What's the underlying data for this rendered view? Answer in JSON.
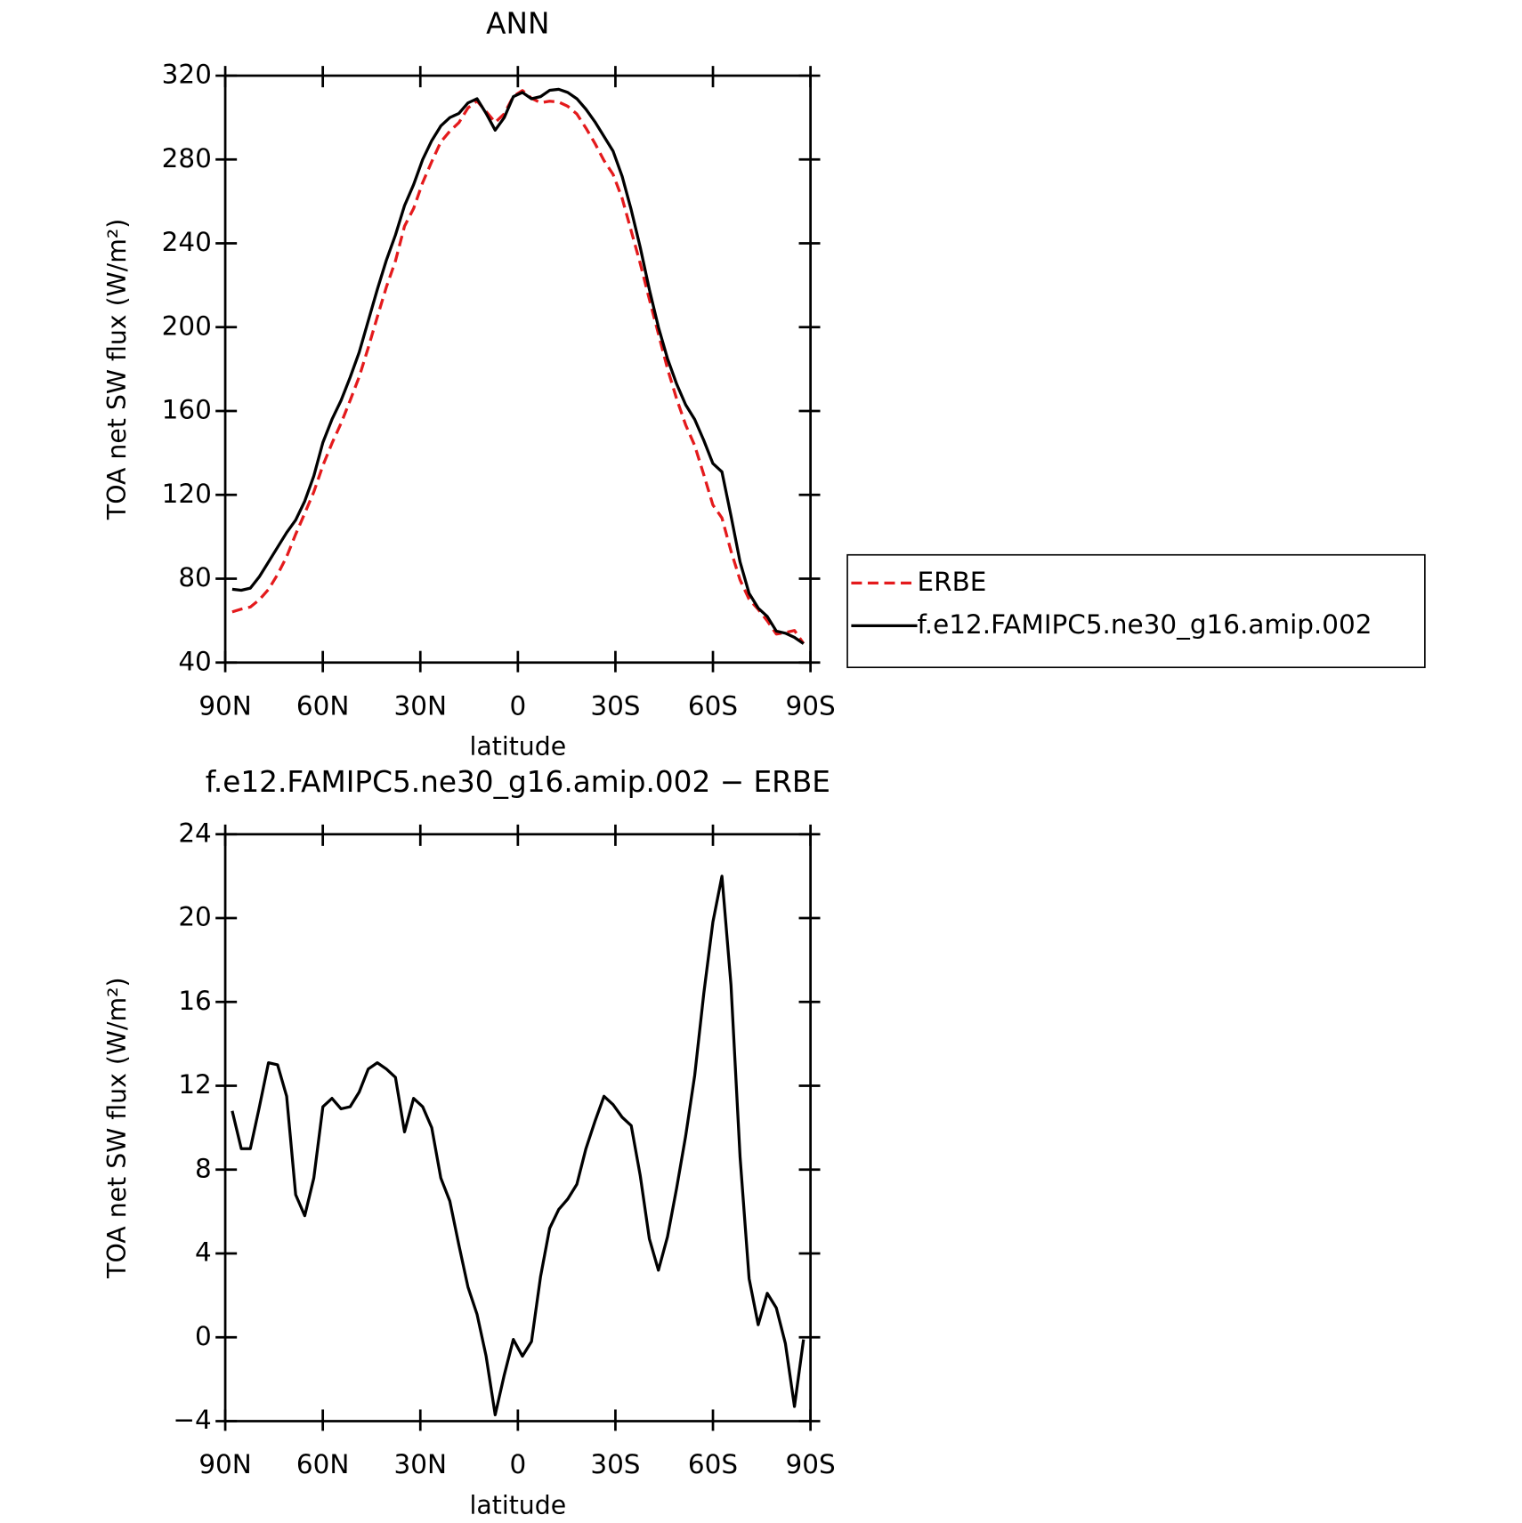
{
  "chart_data": [
    {
      "type": "line",
      "title": "ANN",
      "xlabel": "latitude",
      "ylabel": "TOA net SW flux (W/m²)",
      "x": [
        87.86,
        85.07,
        82.28,
        79.49,
        76.7,
        73.91,
        71.12,
        68.34,
        65.55,
        62.76,
        59.97,
        57.18,
        54.39,
        51.6,
        48.81,
        46.02,
        43.23,
        40.44,
        37.65,
        34.86,
        32.07,
        29.28,
        26.49,
        23.7,
        20.93,
        18.14,
        15.35,
        12.56,
        9.77,
        6.98,
        4.19,
        1.4,
        -1.4,
        -4.19,
        -6.98,
        -9.77,
        -12.56,
        -15.35,
        -18.14,
        -20.93,
        -23.7,
        -26.49,
        -29.28,
        -32.07,
        -34.86,
        -37.65,
        -40.44,
        -43.23,
        -46.02,
        -48.81,
        -51.6,
        -54.39,
        -57.18,
        -59.97,
        -62.76,
        -65.55,
        -68.34,
        -71.12,
        -73.91,
        -76.7,
        -79.49,
        -82.28,
        -85.07,
        -87.86
      ],
      "series": [
        {
          "name": "ERBE",
          "color": "#e41a1c",
          "dash": true,
          "values": [
            64.2,
            65.5,
            66.5,
            70,
            74.9,
            82,
            90.5,
            101.2,
            111.2,
            121.4,
            134,
            144.6,
            154.1,
            165,
            176.3,
            190.2,
            204.9,
            219.2,
            231.6,
            248.2,
            256.6,
            269,
            279,
            288.4,
            293.5,
            297.6,
            304.6,
            307.9,
            302.9,
            297.7,
            301.8,
            310.1,
            312.9,
            309.2,
            307.1,
            307.8,
            307.4,
            305.4,
            301.7,
            295,
            287.7,
            279.5,
            272.9,
            261.5,
            245.9,
            230.3,
            213.3,
            196.8,
            180.2,
            165.9,
            153.4,
            143.5,
            129.6,
            115.2,
            109,
            93.2,
            79.4,
            70.2,
            65.4,
            59.9,
            53.6,
            54.3,
            55.3,
            49.1
          ]
        },
        {
          "name": "f.e12.FAMIPC5.ne30_g16.amip.002",
          "color": "#000000",
          "dash": false,
          "values": [
            75,
            74.5,
            75.5,
            81,
            88,
            95,
            102,
            108,
            117,
            129,
            145,
            156,
            165,
            176,
            188,
            203,
            218,
            232,
            244,
            258,
            268,
            280,
            289,
            296,
            300,
            302,
            307,
            309,
            302,
            294,
            300,
            310,
            312,
            309,
            310,
            313,
            313.5,
            312,
            309,
            304,
            298,
            291,
            284,
            272,
            256,
            238,
            218,
            200,
            185,
            173,
            163,
            156,
            146,
            135,
            131,
            110,
            88,
            73,
            66,
            62,
            55,
            54,
            52,
            49
          ]
        }
      ],
      "xlim": [
        90,
        -90
      ],
      "xticks": [
        {
          "value": 90,
          "label": "90N"
        },
        {
          "value": 60,
          "label": "60N"
        },
        {
          "value": 30,
          "label": "30N"
        },
        0,
        {
          "value": -30,
          "label": "30S"
        },
        {
          "value": -60,
          "label": "60S"
        },
        {
          "value": -90,
          "label": "90S"
        }
      ],
      "ylim": [
        40,
        320
      ],
      "yticks": [
        40,
        80,
        120,
        160,
        200,
        240,
        280,
        320
      ],
      "legend": "right"
    },
    {
      "type": "line",
      "title": "f.e12.FAMIPC5.ne30_g16.amip.002 − ERBE",
      "xlabel": "latitude",
      "ylabel": "TOA net SW flux (W/m²)",
      "x": [
        87.86,
        85.07,
        82.28,
        79.49,
        76.7,
        73.91,
        71.12,
        68.34,
        65.55,
        62.76,
        59.97,
        57.18,
        54.39,
        51.6,
        48.81,
        46.02,
        43.23,
        40.44,
        37.65,
        34.86,
        32.07,
        29.28,
        26.49,
        23.7,
        20.93,
        18.14,
        15.35,
        12.56,
        9.77,
        6.98,
        4.19,
        1.4,
        -1.4,
        -4.19,
        -6.98,
        -9.77,
        -12.56,
        -15.35,
        -18.14,
        -20.93,
        -23.7,
        -26.49,
        -29.28,
        -32.07,
        -34.86,
        -37.65,
        -40.44,
        -43.23,
        -46.02,
        -48.81,
        -51.6,
        -54.39,
        -57.18,
        -59.97,
        -62.76,
        -65.55,
        -68.34,
        -71.12,
        -73.91,
        -76.7,
        -79.49,
        -82.28,
        -85.07,
        -87.86
      ],
      "color": "#000000",
      "values": [
        10.8,
        9,
        9,
        11,
        13.1,
        13,
        11.5,
        6.8,
        5.8,
        7.6,
        11,
        11.4,
        10.9,
        11,
        11.7,
        12.8,
        13.1,
        12.8,
        12.4,
        9.8,
        11.4,
        11,
        10,
        7.6,
        6.5,
        4.4,
        2.4,
        1.1,
        -0.9,
        -3.7,
        -1.8,
        -0.1,
        -0.9,
        -0.2,
        2.9,
        5.2,
        6.1,
        6.6,
        7.3,
        9,
        10.3,
        11.5,
        11.1,
        10.5,
        10.1,
        7.7,
        4.7,
        3.2,
        4.8,
        7.1,
        9.6,
        12.5,
        16.4,
        19.8,
        22,
        16.8,
        8.6,
        2.8,
        0.6,
        2.1,
        1.4,
        -0.3,
        -3.3,
        -0.1
      ],
      "xlim": [
        90,
        -90
      ],
      "xticks": [
        {
          "value": 90,
          "label": "90N"
        },
        {
          "value": 60,
          "label": "60N"
        },
        {
          "value": 30,
          "label": "30N"
        },
        0,
        {
          "value": -30,
          "label": "30S"
        },
        {
          "value": -60,
          "label": "60S"
        },
        {
          "value": -90,
          "label": "90S"
        }
      ],
      "ylim": [
        -4,
        24
      ],
      "yticks": [
        {
          "value": -4,
          "label": "−4"
        },
        0,
        4,
        8,
        12,
        16,
        20,
        24
      ]
    }
  ]
}
